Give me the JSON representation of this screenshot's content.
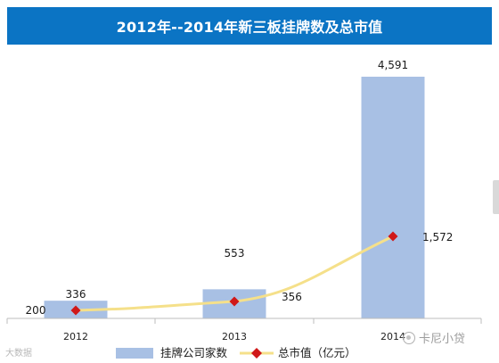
{
  "chart_data": {
    "type": "bar",
    "title": "2012年--2014年新三板挂牌数及总市值",
    "categories": [
      "2012",
      "2013",
      "2014"
    ],
    "series": [
      {
        "name": "挂牌公司家数",
        "type": "bar",
        "values": [
          336,
          553,
          4591
        ],
        "labels": [
          "336",
          "553",
          "4,591"
        ],
        "color": "#a8c0e4"
      },
      {
        "name": "总市值（亿元）",
        "type": "line",
        "values": [
          200,
          356,
          1572
        ],
        "labels": [
          "200",
          "356",
          "1,572"
        ],
        "color": "#f5e08a",
        "marker_color": "#d01818"
      }
    ],
    "ylim": [
      0,
      4800
    ],
    "grid": false,
    "legend": "bottom"
  },
  "watermark": {
    "left_text": "大数据",
    "right_text": "卡尼小贷"
  },
  "colors": {
    "title_bar": "#0b74c4",
    "axis": "#bcbcbc"
  }
}
